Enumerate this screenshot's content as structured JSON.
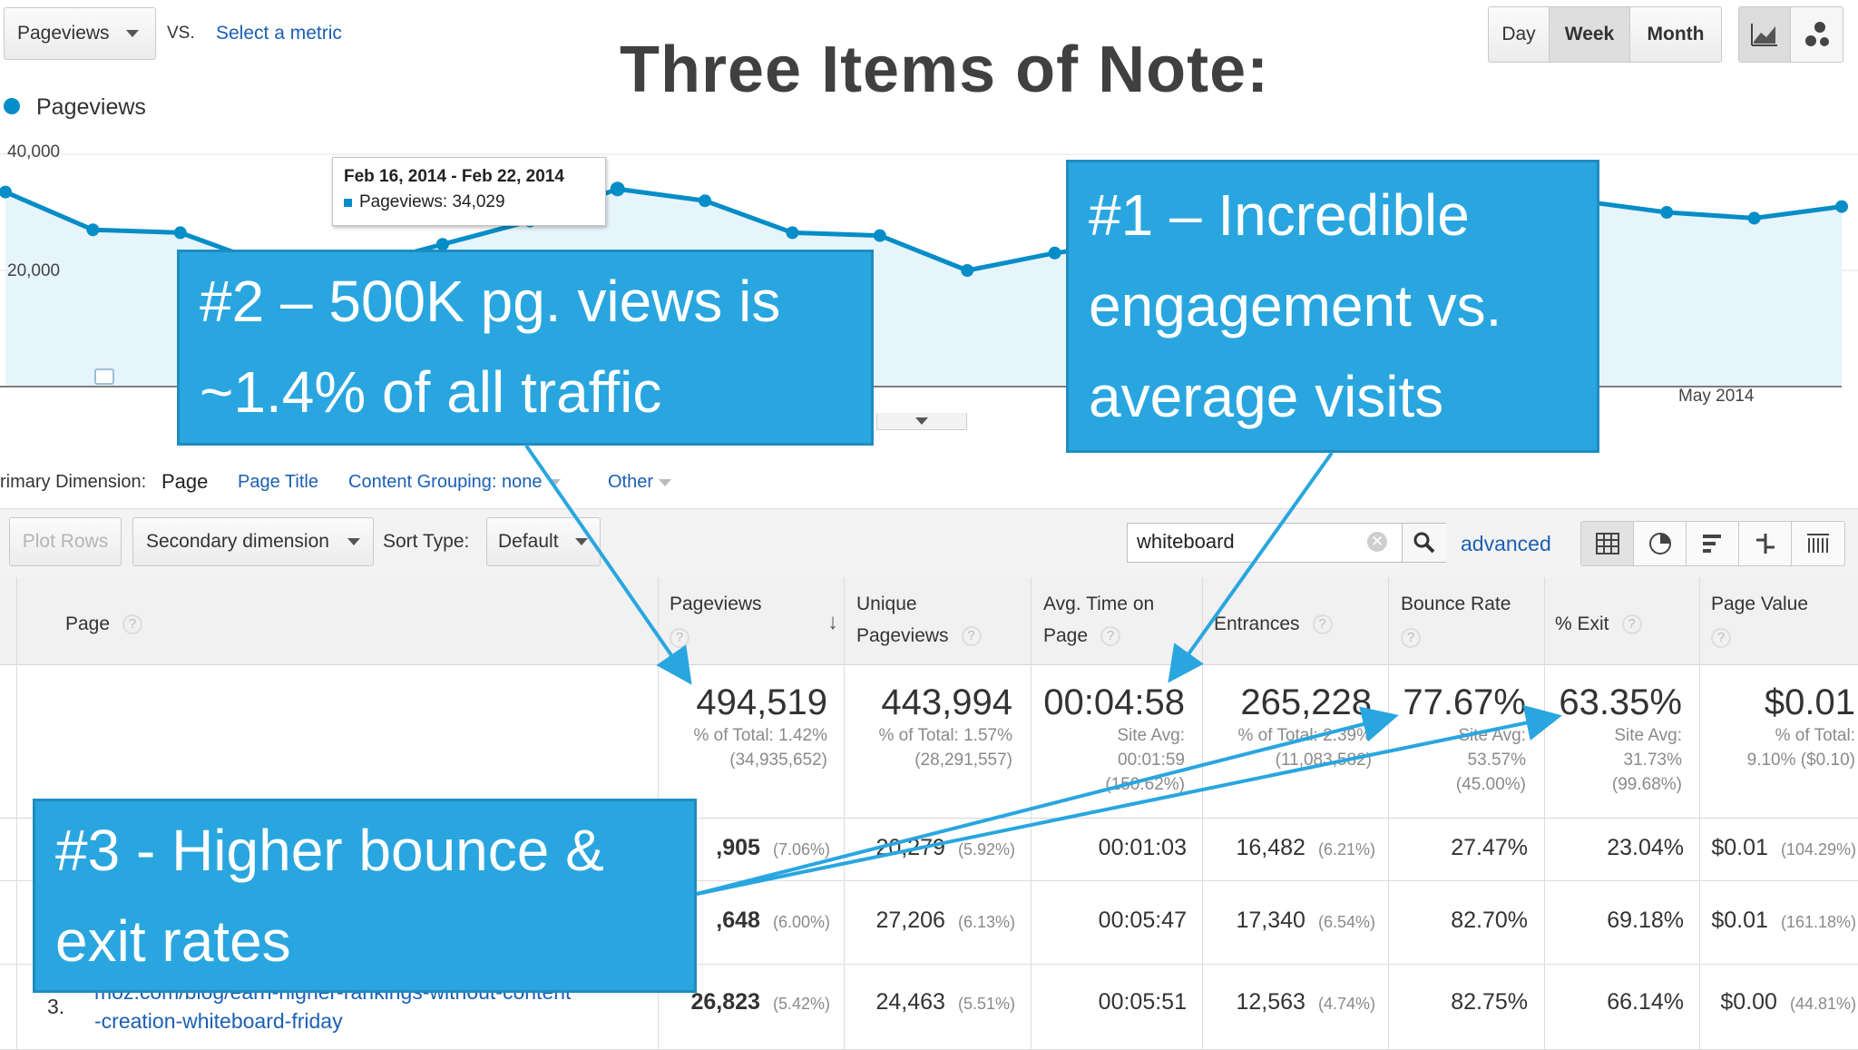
{
  "title": "Three Items of Note:",
  "toolbar": {
    "metric_selector": "Pageviews",
    "vs_label": "VS.",
    "select_metric": "Select a metric",
    "period_buttons": [
      "Day",
      "Week",
      "Month"
    ],
    "selected_period": "Week"
  },
  "legend": {
    "label": "Pageviews",
    "color": "#058dc7"
  },
  "chart_data": {
    "type": "area",
    "series": [
      {
        "name": "Pageviews",
        "values": [
          33500,
          27000,
          26500,
          21000,
          20500,
          24500,
          28500,
          34029,
          32000,
          26500,
          26000,
          20000,
          23000,
          25000,
          30000,
          31500,
          30000,
          29000,
          32000,
          30000,
          29000,
          31000
        ]
      }
    ],
    "ylim": [
      0,
      40000
    ],
    "y_tick_labels": [
      "40,000",
      "20,000"
    ],
    "x_tick_labels": [
      "May 2014"
    ],
    "tooltip": {
      "date_range": "Feb 16, 2014 - Feb 22, 2014",
      "label": "Pageviews: 34,029"
    }
  },
  "dimension_bar": {
    "label": "rimary Dimension:",
    "active": "Page",
    "options": [
      "Page Title",
      "Content Grouping: none",
      "Other"
    ]
  },
  "controls": {
    "plot_rows": "Plot Rows",
    "secondary_dimension": "Secondary dimension",
    "sort_type_label": "Sort Type:",
    "sort_type_value": "Default",
    "search_value": "whiteboard",
    "advanced": "advanced"
  },
  "table": {
    "headers": {
      "page": "Page",
      "pageviews": "Pageviews",
      "unique_pageviews": [
        "Unique",
        "Pageviews"
      ],
      "avg_time": [
        "Avg. Time on",
        "Page"
      ],
      "entrances": "Entrances",
      "bounce_rate": "Bounce Rate",
      "exit": "% Exit",
      "page_value": "Page Value"
    },
    "totals": {
      "pageviews": {
        "value": "494,519",
        "sub": [
          "% of Total: 1.42%",
          "(34,935,652)"
        ]
      },
      "unique_pageviews": {
        "value": "443,994",
        "sub": [
          "% of Total: 1.57%",
          "(28,291,557)"
        ]
      },
      "avg_time": {
        "value": "00:04:58",
        "sub": [
          "Site Avg:",
          "00:01:59",
          "(150.62%)"
        ]
      },
      "entrances": {
        "value": "265,228",
        "sub": [
          "% of Total: 2.39%",
          "(11,083,582)"
        ]
      },
      "bounce_rate": {
        "value": "77.67%",
        "sub": [
          "Site Avg:",
          "53.57%",
          "(45.00%)"
        ]
      },
      "exit": {
        "value": "63.35%",
        "sub": [
          "Site Avg:",
          "31.73%",
          "(99.68%)"
        ]
      },
      "page_value": {
        "value": "$0.01",
        "sub": [
          "% of Total:",
          "9.10% ($0.10)"
        ]
      }
    },
    "rows": [
      {
        "pageviews": ",905",
        "pageviews_pct": "(7.06%)",
        "unique": "20,279",
        "unique_pct": "(5.92%)",
        "avg_time": "00:01:03",
        "entrances": "16,482",
        "entrances_pct": "(6.21%)",
        "bounce": "27.47%",
        "exit": "23.04%",
        "value": "$0.01",
        "value_pct": "(104.29%)"
      },
      {
        "pageviews": ",648",
        "pageviews_pct": "(6.00%)",
        "unique": "27,206",
        "unique_pct": "(6.13%)",
        "avg_time": "00:05:47",
        "entrances": "17,340",
        "entrances_pct": "(6.54%)",
        "bounce": "82.70%",
        "exit": "69.18%",
        "value": "$0.01",
        "value_pct": "(161.18%)"
      },
      {
        "index": "3.",
        "page_line1": "moz.com/blog/earn-higher-rankings-without-content",
        "page_line2": "-creation-whiteboard-friday",
        "pageviews": "26,823",
        "pageviews_pct": "(5.42%)",
        "unique": "24,463",
        "unique_pct": "(5.51%)",
        "avg_time": "00:05:51",
        "entrances": "12,563",
        "entrances_pct": "(4.74%)",
        "bounce": "82.75%",
        "exit": "66.14%",
        "value": "$0.00",
        "value_pct": "(44.81%)"
      }
    ]
  },
  "callouts": {
    "one": [
      "#1 – Incredible",
      "engagement vs.",
      "average visits"
    ],
    "two": [
      "#2 – 500K pg. views is",
      "~1.4% of all traffic"
    ],
    "three": [
      "#3 - Higher bounce &",
      "exit rates"
    ]
  },
  "colors": {
    "callout": "#29a6df",
    "line": "#058dc7",
    "area": "#e6f4fb"
  }
}
